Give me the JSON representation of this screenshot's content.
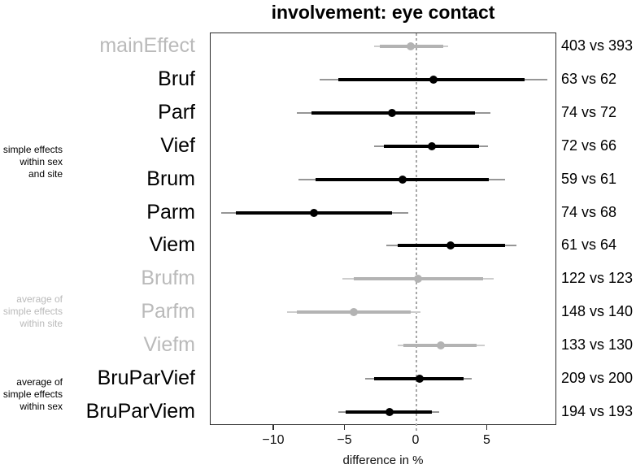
{
  "chart_data": {
    "type": "forest",
    "title": "involvement: eye contact",
    "xlabel": "difference in %",
    "x_ticks": [
      -10,
      -5,
      0,
      5
    ],
    "x_tick_labels": [
      "−10",
      "−5",
      "0",
      "5"
    ],
    "xlim": [
      -14.5,
      10
    ],
    "zero_reference": 0,
    "grid": false,
    "rows": [
      {
        "label": "mainEffect",
        "emphasis": "gray",
        "estimate": -0.4,
        "thick": [
          -2.6,
          1.9
        ],
        "thin": [
          -3.0,
          2.2
        ],
        "counts": "403 vs 393"
      },
      {
        "label": "Bruf",
        "emphasis": "black",
        "estimate": 1.2,
        "thick": [
          -5.5,
          7.6
        ],
        "thin": [
          -6.8,
          9.2
        ],
        "counts": "63 vs 62"
      },
      {
        "label": "Parf",
        "emphasis": "black",
        "estimate": -1.7,
        "thick": [
          -7.4,
          4.1
        ],
        "thin": [
          -8.4,
          5.2
        ],
        "counts": "74 vs 72"
      },
      {
        "label": "Vief",
        "emphasis": "black",
        "estimate": 1.1,
        "thick": [
          -2.3,
          4.4
        ],
        "thin": [
          -3.0,
          5.0
        ],
        "counts": "72 vs 66"
      },
      {
        "label": "Brum",
        "emphasis": "black",
        "estimate": -1.0,
        "thick": [
          -7.1,
          5.1
        ],
        "thin": [
          -8.3,
          6.2
        ],
        "counts": "59 vs 61"
      },
      {
        "label": "Parm",
        "emphasis": "black",
        "estimate": -7.2,
        "thick": [
          -12.7,
          -1.7
        ],
        "thin": [
          -13.7,
          -0.6
        ],
        "counts": "74 vs 68"
      },
      {
        "label": "Viem",
        "emphasis": "black",
        "estimate": 2.4,
        "thick": [
          -1.3,
          6.2
        ],
        "thin": [
          -2.1,
          7.0
        ],
        "counts": "61 vs 64"
      },
      {
        "label": "Brufm",
        "emphasis": "gray",
        "estimate": 0.1,
        "thick": [
          -4.4,
          4.7
        ],
        "thin": [
          -5.2,
          5.4
        ],
        "counts": "122 vs 123"
      },
      {
        "label": "Parfm",
        "emphasis": "gray",
        "estimate": -4.4,
        "thick": [
          -8.4,
          -0.4
        ],
        "thin": [
          -9.1,
          0.3
        ],
        "counts": "148 vs 140"
      },
      {
        "label": "Viefm",
        "emphasis": "gray",
        "estimate": 1.7,
        "thick": [
          -0.9,
          4.2
        ],
        "thin": [
          -1.3,
          4.8
        ],
        "counts": "133 vs 130"
      },
      {
        "label": "BruParVief",
        "emphasis": "black",
        "estimate": 0.2,
        "thick": [
          -3.0,
          3.3
        ],
        "thin": [
          -3.6,
          3.9
        ],
        "counts": "209 vs 200"
      },
      {
        "label": "BruParViem",
        "emphasis": "black",
        "estimate": -1.9,
        "thick": [
          -5.0,
          1.1
        ],
        "thin": [
          -5.5,
          1.6
        ],
        "counts": "194 vs 193"
      }
    ],
    "annotations": [
      {
        "lines": [
          "simple effects",
          "within sex",
          "and site"
        ],
        "emphasis": "black",
        "row_span": [
          1,
          6
        ]
      },
      {
        "lines": [
          "average of",
          "simple effects",
          "within site"
        ],
        "emphasis": "gray",
        "row_span": [
          7,
          9
        ]
      },
      {
        "lines": [
          "average of",
          "simple effects",
          "within sex"
        ],
        "emphasis": "black",
        "row_span": [
          10,
          11
        ]
      }
    ],
    "colors": {
      "black_series": "#000000",
      "black_outer": "#969696",
      "gray_series": "#b3b3b3",
      "gray_outer": "#cdcdcd",
      "gray_label": "#bababa",
      "zero_line": "#a8a8a8",
      "axis": "#2b2b2b",
      "text": "#000000"
    }
  }
}
